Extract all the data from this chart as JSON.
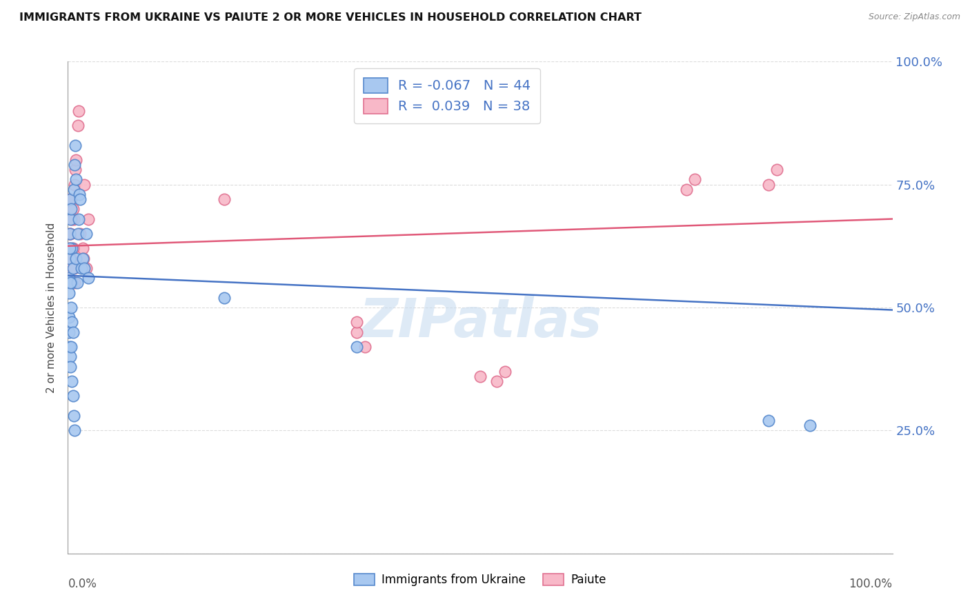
{
  "title": "IMMIGRANTS FROM UKRAINE VS PAIUTE 2 OR MORE VEHICLES IN HOUSEHOLD CORRELATION CHART",
  "source": "Source: ZipAtlas.com",
  "ylabel": "2 or more Vehicles in Household",
  "blue_label": "Immigrants from Ukraine",
  "pink_label": "Paiute",
  "blue_R": -0.067,
  "blue_N": 44,
  "pink_R": 0.039,
  "pink_N": 38,
  "blue_fill": "#A8C8F0",
  "pink_fill": "#F8B8C8",
  "blue_edge": "#5588CC",
  "pink_edge": "#E07090",
  "blue_line": "#4472C4",
  "pink_line": "#E05878",
  "grid_color": "#CCCCCC",
  "axis_color": "#999999",
  "right_tick_color": "#4472C4",
  "watermark_color": "#C8DCF0",
  "background": "#FFFFFF",
  "blue_x": [
    0.001,
    0.002,
    0.002,
    0.003,
    0.003,
    0.004,
    0.005,
    0.005,
    0.006,
    0.007,
    0.008,
    0.009,
    0.01,
    0.01,
    0.011,
    0.012,
    0.013,
    0.014,
    0.015,
    0.016,
    0.018,
    0.02,
    0.022,
    0.025,
    0.001,
    0.001,
    0.001,
    0.002,
    0.003,
    0.003,
    0.004,
    0.005,
    0.006,
    0.007,
    0.008,
    0.002,
    0.003,
    0.004,
    0.005,
    0.006,
    0.19,
    0.35,
    0.85,
    0.9
  ],
  "blue_y": [
    0.56,
    0.6,
    0.65,
    0.68,
    0.72,
    0.7,
    0.55,
    0.62,
    0.58,
    0.74,
    0.79,
    0.83,
    0.76,
    0.6,
    0.55,
    0.65,
    0.68,
    0.73,
    0.72,
    0.58,
    0.6,
    0.58,
    0.65,
    0.56,
    0.53,
    0.48,
    0.45,
    0.42,
    0.4,
    0.38,
    0.42,
    0.35,
    0.32,
    0.28,
    0.25,
    0.62,
    0.55,
    0.5,
    0.47,
    0.45,
    0.52,
    0.42,
    0.27,
    0.26
  ],
  "pink_x": [
    0.001,
    0.002,
    0.003,
    0.003,
    0.004,
    0.005,
    0.006,
    0.007,
    0.008,
    0.009,
    0.01,
    0.012,
    0.013,
    0.015,
    0.018,
    0.02,
    0.022,
    0.025,
    0.001,
    0.002,
    0.003,
    0.004,
    0.005,
    0.006,
    0.007,
    0.008,
    0.019,
    0.19,
    0.35,
    0.35,
    0.36,
    0.75,
    0.76,
    0.85,
    0.86,
    0.5,
    0.52,
    0.53
  ],
  "pink_y": [
    0.6,
    0.72,
    0.58,
    0.65,
    0.6,
    0.55,
    0.7,
    0.68,
    0.75,
    0.78,
    0.8,
    0.87,
    0.9,
    0.65,
    0.62,
    0.75,
    0.58,
    0.68,
    0.62,
    0.65,
    0.6,
    0.72,
    0.68,
    0.62,
    0.58,
    0.55,
    0.6,
    0.72,
    0.45,
    0.47,
    0.42,
    0.74,
    0.76,
    0.75,
    0.78,
    0.36,
    0.35,
    0.37
  ],
  "blue_trend_x0": 0.0,
  "blue_trend_x1": 1.0,
  "blue_trend_y0": 0.565,
  "blue_trend_y1": 0.495,
  "pink_trend_x0": 0.0,
  "pink_trend_x1": 1.0,
  "pink_trend_y0": 0.625,
  "pink_trend_y1": 0.68,
  "xlim": [
    0.0,
    1.0
  ],
  "ylim": [
    0.0,
    1.0
  ],
  "yticks": [
    0.0,
    0.25,
    0.5,
    0.75,
    1.0
  ],
  "ytick_labels": [
    "",
    "25.0%",
    "50.0%",
    "75.0%",
    "100.0%"
  ]
}
